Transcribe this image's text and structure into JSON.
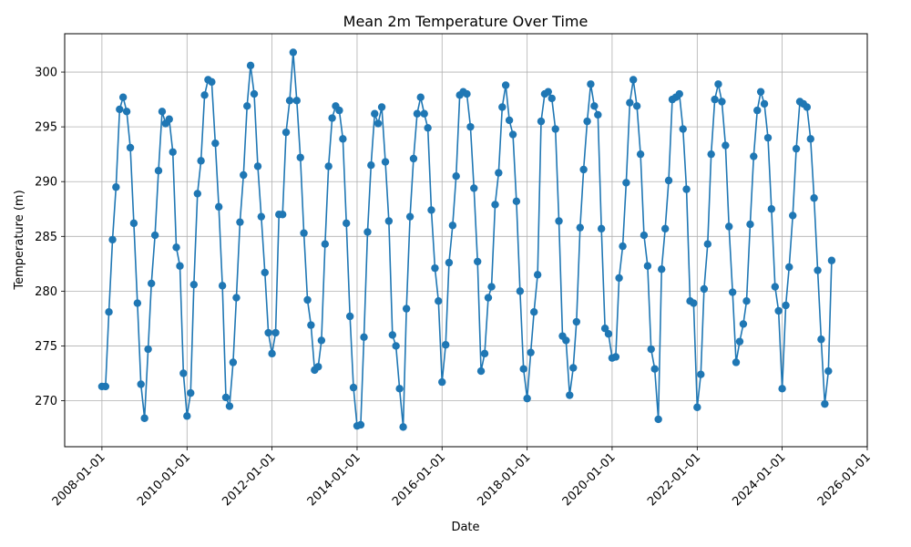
{
  "chart_data": {
    "type": "line",
    "title": "Mean 2m Temperature Over Time",
    "xlabel": "Date",
    "ylabel": "Temperature (m)",
    "x_ticks": [
      "2008-01-01",
      "2010-01-01",
      "2012-01-01",
      "2014-01-01",
      "2016-01-01",
      "2018-01-01",
      "2020-01-01",
      "2022-01-01",
      "2024-01-01",
      "2026-01-01"
    ],
    "y_ticks": [
      270,
      275,
      280,
      285,
      290,
      295,
      300
    ],
    "xlim": [
      "2007-02-15",
      "2026-01-01"
    ],
    "ylim": [
      265.8,
      303.5
    ],
    "grid": true,
    "color": "#1f77b4",
    "series": [
      {
        "x": [
          "2008-01",
          "2008-02",
          "2008-03",
          "2008-04",
          "2008-05",
          "2008-06",
          "2008-07",
          "2008-08",
          "2008-09",
          "2008-10",
          "2008-11",
          "2008-12",
          "2009-01",
          "2009-02",
          "2009-03",
          "2009-04",
          "2009-05",
          "2009-06",
          "2009-07",
          "2009-08",
          "2009-09",
          "2009-10",
          "2009-11",
          "2009-12",
          "2010-01",
          "2010-02",
          "2010-03",
          "2010-04",
          "2010-05",
          "2010-06",
          "2010-07",
          "2010-08",
          "2010-09",
          "2010-10",
          "2010-11",
          "2010-12",
          "2011-01",
          "2011-02",
          "2011-03",
          "2011-04",
          "2011-05",
          "2011-06",
          "2011-07",
          "2011-08",
          "2011-09",
          "2011-10",
          "2011-11",
          "2011-12",
          "2012-01",
          "2012-02",
          "2012-03",
          "2012-04",
          "2012-05",
          "2012-06",
          "2012-07",
          "2012-08",
          "2012-09",
          "2012-10",
          "2012-11",
          "2012-12",
          "2013-01",
          "2013-02",
          "2013-03",
          "2013-04",
          "2013-05",
          "2013-06",
          "2013-07",
          "2013-08",
          "2013-09",
          "2013-10",
          "2013-11",
          "2013-12",
          "2014-01",
          "2014-02",
          "2014-03",
          "2014-04",
          "2014-05",
          "2014-06",
          "2014-07",
          "2014-08",
          "2014-09",
          "2014-10",
          "2014-11",
          "2014-12",
          "2015-01",
          "2015-02",
          "2015-03",
          "2015-04",
          "2015-05",
          "2015-06",
          "2015-07",
          "2015-08",
          "2015-09",
          "2015-10",
          "2015-11",
          "2015-12",
          "2016-01",
          "2016-02",
          "2016-03",
          "2016-04",
          "2016-05",
          "2016-06",
          "2016-07",
          "2016-08",
          "2016-09",
          "2016-10",
          "2016-11",
          "2016-12",
          "2017-01",
          "2017-02",
          "2017-03",
          "2017-04",
          "2017-05",
          "2017-06",
          "2017-07",
          "2017-08",
          "2017-09",
          "2017-10",
          "2017-11",
          "2017-12",
          "2018-01",
          "2018-02",
          "2018-03",
          "2018-04",
          "2018-05",
          "2018-06",
          "2018-07",
          "2018-08",
          "2018-09",
          "2018-10",
          "2018-11",
          "2018-12",
          "2019-01",
          "2019-02",
          "2019-03",
          "2019-04",
          "2019-05",
          "2019-06",
          "2019-07",
          "2019-08",
          "2019-09",
          "2019-10",
          "2019-11",
          "2019-12",
          "2020-01",
          "2020-02",
          "2020-03",
          "2020-04",
          "2020-05",
          "2020-06",
          "2020-07",
          "2020-08",
          "2020-09",
          "2020-10",
          "2020-11",
          "2020-12",
          "2021-01",
          "2021-02",
          "2021-03",
          "2021-04",
          "2021-05",
          "2021-06",
          "2021-07",
          "2021-08",
          "2021-09",
          "2021-10",
          "2021-11",
          "2021-12",
          "2022-01",
          "2022-02",
          "2022-03",
          "2022-04",
          "2022-05",
          "2022-06",
          "2022-07",
          "2022-08",
          "2022-09",
          "2022-10",
          "2022-11",
          "2022-12",
          "2023-01",
          "2023-02",
          "2023-03",
          "2023-04",
          "2023-05",
          "2023-06",
          "2023-07",
          "2023-08",
          "2023-09",
          "2023-10",
          "2023-11",
          "2023-12",
          "2024-01",
          "2024-02",
          "2024-03",
          "2024-04",
          "2024-05",
          "2024-06",
          "2024-07",
          "2024-08",
          "2024-09",
          "2024-10",
          "2024-11",
          "2024-12",
          "2025-01",
          "2025-02",
          "2025-03"
        ],
        "values": [
          271.3,
          271.3,
          278.1,
          284.7,
          289.5,
          296.6,
          297.7,
          296.4,
          293.1,
          286.2,
          278.9,
          271.5,
          268.4,
          274.7,
          280.7,
          285.1,
          291.0,
          296.4,
          295.3,
          295.7,
          292.7,
          284.0,
          282.3,
          272.5,
          268.6,
          270.7,
          280.6,
          288.9,
          291.9,
          297.9,
          299.3,
          299.1,
          293.5,
          287.7,
          280.5,
          270.3,
          269.5,
          273.5,
          279.4,
          286.3,
          290.6,
          296.9,
          300.6,
          298.0,
          291.4,
          286.8,
          281.7,
          276.2,
          274.3,
          276.2,
          287.0,
          287.0,
          294.5,
          297.4,
          301.8,
          297.4,
          292.2,
          285.3,
          279.2,
          276.9,
          272.8,
          273.1,
          275.5,
          284.3,
          291.4,
          295.8,
          296.9,
          296.5,
          293.9,
          286.2,
          277.7,
          271.2,
          267.7,
          267.8,
          275.8,
          285.4,
          291.5,
          296.2,
          295.3,
          296.8,
          291.8,
          286.4,
          276.0,
          275.0,
          271.1,
          267.6,
          278.4,
          286.8,
          292.1,
          296.2,
          297.7,
          296.2,
          294.9,
          287.4,
          282.1,
          279.1,
          271.7,
          275.1,
          282.6,
          286.0,
          290.5,
          297.9,
          298.2,
          298.0,
          295.0,
          289.4,
          282.7,
          272.7,
          274.3,
          279.4,
          280.4,
          287.9,
          290.8,
          296.8,
          298.8,
          295.6,
          294.3,
          288.2,
          280.0,
          272.9,
          270.2,
          274.4,
          278.1,
          281.5,
          295.5,
          298.0,
          298.2,
          297.6,
          294.8,
          286.4,
          275.9,
          275.5,
          270.5,
          273.0,
          277.2,
          285.8,
          291.1,
          295.5,
          298.9,
          296.9,
          296.1,
          285.7,
          276.6,
          276.1,
          273.9,
          274.0,
          281.2,
          284.1,
          289.9,
          297.2,
          299.3,
          296.9,
          292.5,
          285.1,
          282.3,
          274.7,
          272.9,
          268.3,
          282.0,
          285.7,
          290.1,
          297.5,
          297.7,
          298.0,
          294.8,
          289.3,
          279.1,
          278.9,
          269.4,
          272.4,
          280.2,
          284.3,
          292.5,
          297.5,
          298.9,
          297.3,
          293.3,
          285.9,
          279.9,
          273.5,
          275.4,
          277.0,
          279.1,
          286.1,
          292.3,
          296.5,
          298.2,
          297.1,
          294.0,
          287.5,
          280.4,
          278.2,
          271.1,
          278.7,
          282.2,
          286.9,
          293.0,
          297.3,
          297.1,
          296.8,
          293.9,
          288.5,
          281.9,
          275.6,
          269.7,
          272.7,
          282.8
        ]
      }
    ]
  }
}
